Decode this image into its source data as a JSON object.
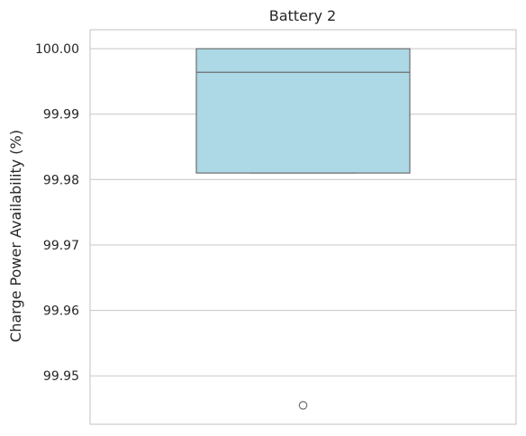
{
  "chart_data": {
    "type": "box",
    "title": "Battery 2",
    "xlabel": "",
    "ylabel": "Charge Power Availability (%)",
    "ylim": [
      99.9426,
      100.0029
    ],
    "yticks": [
      99.95,
      99.96,
      99.97,
      99.98,
      99.99,
      100.0
    ],
    "ytick_labels": [
      "99.95",
      "99.96",
      "99.97",
      "99.98",
      "99.99",
      "100.00"
    ],
    "grid": "horizontal",
    "box": {
      "whisker_low": 99.981,
      "q1": 99.981,
      "median": 99.9964,
      "q3": 100.0,
      "whisker_high": 100.0,
      "outliers": [
        99.9455
      ]
    },
    "colors": {
      "box_fill": "#add8e6",
      "box_edge": "#6e6e6e",
      "grid": "#cccccc",
      "frame": "#cccccc"
    }
  }
}
